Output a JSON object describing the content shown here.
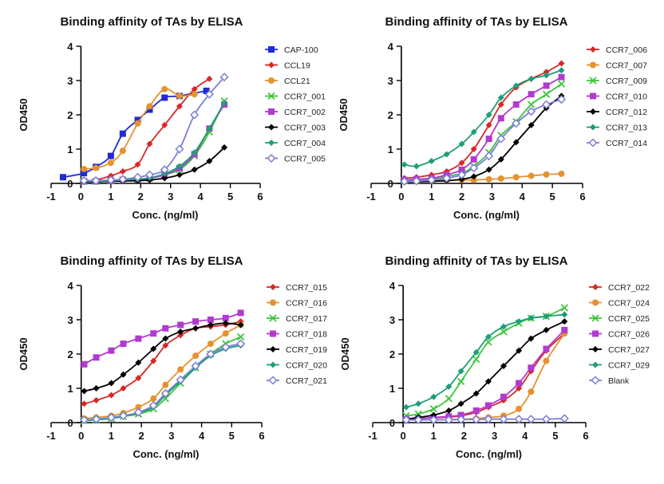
{
  "chart_data": [
    {
      "type": "line",
      "title": "Binding affinity of TAs by ELISA",
      "xlabel": "Conc. (ng/ml)",
      "ylabel": "OD450",
      "xlim": [
        -1,
        6
      ],
      "ylim": [
        0,
        4
      ],
      "xticks": [
        "-1",
        "0",
        "1",
        "2",
        "3",
        "4",
        "5",
        "6"
      ],
      "yticks": [
        "0",
        "1",
        "2",
        "3",
        "4"
      ],
      "legend_position": "right",
      "series": [
        {
          "name": "CAP-100",
          "color": "#1f2bd1",
          "marker": "square",
          "x": [
            -0.6,
            0.1,
            0.5,
            1.0,
            1.4,
            1.9,
            2.3,
            2.8,
            3.3,
            4.2
          ],
          "y": [
            0.18,
            0.3,
            0.48,
            0.8,
            1.45,
            1.85,
            2.15,
            2.5,
            2.55,
            2.7
          ]
        },
        {
          "name": "CCL19",
          "color": "#d62828",
          "marker": "diamond",
          "x": [
            0.1,
            0.5,
            1.0,
            1.4,
            1.9,
            2.3,
            2.8,
            3.3,
            3.8,
            4.3
          ],
          "y": [
            0.08,
            0.1,
            0.22,
            0.35,
            0.55,
            1.15,
            1.7,
            2.25,
            2.75,
            3.05
          ]
        },
        {
          "name": "CCL21",
          "color": "#e5922f",
          "marker": "circle",
          "x": [
            0.1,
            0.5,
            1.0,
            1.4,
            1.9,
            2.3,
            2.8,
            3.3,
            3.8
          ],
          "y": [
            0.42,
            0.45,
            0.6,
            0.95,
            1.75,
            2.25,
            2.75,
            2.55,
            2.6
          ]
        },
        {
          "name": "CCR7_001",
          "color": "#3cc63c",
          "marker": "x",
          "x": [
            0.1,
            0.5,
            1.0,
            1.4,
            1.9,
            2.3,
            2.8,
            3.3,
            3.8,
            4.3,
            4.8
          ],
          "y": [
            0.06,
            0.06,
            0.08,
            0.1,
            0.12,
            0.15,
            0.25,
            0.4,
            0.8,
            1.5,
            2.4
          ]
        },
        {
          "name": "CCR7_002",
          "color": "#b23ad1",
          "marker": "square",
          "x": [
            0.1,
            0.5,
            1.0,
            1.4,
            1.9,
            2.3,
            2.8,
            3.3,
            3.8,
            4.3,
            4.8
          ],
          "y": [
            0.06,
            0.06,
            0.08,
            0.1,
            0.12,
            0.15,
            0.25,
            0.45,
            0.85,
            1.6,
            2.3
          ]
        },
        {
          "name": "CCR7_003",
          "color": "#000000",
          "marker": "diamond",
          "x": [
            0.1,
            0.5,
            1.0,
            1.4,
            1.9,
            2.3,
            2.8,
            3.3,
            3.8,
            4.3,
            4.8
          ],
          "y": [
            0.04,
            0.05,
            0.06,
            0.07,
            0.08,
            0.1,
            0.15,
            0.25,
            0.4,
            0.65,
            1.05
          ]
        },
        {
          "name": "CCR7_004",
          "color": "#1e9e78",
          "marker": "diamond",
          "x": [
            0.1,
            0.5,
            1.0,
            1.4,
            1.9,
            2.3,
            2.8,
            3.3,
            3.8,
            4.3,
            4.8
          ],
          "y": [
            0.06,
            0.06,
            0.08,
            0.1,
            0.12,
            0.16,
            0.28,
            0.5,
            0.9,
            1.6,
            2.35
          ]
        },
        {
          "name": "CCR7_005",
          "color": "#7b7fd6",
          "marker": "diamond-open",
          "x": [
            0.1,
            0.5,
            1.0,
            1.4,
            1.9,
            2.3,
            2.8,
            3.3,
            3.8,
            4.3,
            4.8
          ],
          "y": [
            0.08,
            0.08,
            0.1,
            0.12,
            0.18,
            0.25,
            0.4,
            1.0,
            2.0,
            2.6,
            3.1
          ]
        }
      ]
    },
    {
      "type": "line",
      "title": "Binding affinity of TAs by ELISA",
      "xlabel": "Conc. (ng/ml)",
      "ylabel": "OD450",
      "xlim": [
        -1,
        6
      ],
      "ylim": [
        0,
        4
      ],
      "xticks": [
        "-1",
        "0",
        "1",
        "2",
        "3",
        "4",
        "5",
        "6"
      ],
      "yticks": [
        "0",
        "1",
        "2",
        "3",
        "4"
      ],
      "legend_position": "right",
      "series": [
        {
          "name": "CCR7_006",
          "color": "#d62828",
          "marker": "diamond",
          "x": [
            0.1,
            0.5,
            1.0,
            1.5,
            2.0,
            2.4,
            2.9,
            3.3,
            3.8,
            4.3,
            4.8,
            5.3
          ],
          "y": [
            0.15,
            0.18,
            0.25,
            0.35,
            0.6,
            1.0,
            1.7,
            2.3,
            2.8,
            3.05,
            3.25,
            3.5
          ]
        },
        {
          "name": "CCR7_007",
          "color": "#e5922f",
          "marker": "circle",
          "x": [
            0.1,
            0.5,
            1.0,
            1.5,
            2.0,
            2.4,
            2.9,
            3.3,
            3.8,
            4.3,
            4.8,
            5.3
          ],
          "y": [
            0.08,
            0.08,
            0.08,
            0.09,
            0.1,
            0.1,
            0.12,
            0.14,
            0.18,
            0.22,
            0.26,
            0.28
          ]
        },
        {
          "name": "CCR7_009",
          "color": "#3cc63c",
          "marker": "x",
          "x": [
            0.1,
            0.5,
            1.0,
            1.5,
            2.0,
            2.4,
            2.9,
            3.3,
            3.8,
            4.3,
            4.8,
            5.3
          ],
          "y": [
            0.08,
            0.1,
            0.12,
            0.2,
            0.3,
            0.5,
            0.9,
            1.4,
            1.8,
            2.3,
            2.6,
            2.9
          ]
        },
        {
          "name": "CCR7_010",
          "color": "#b23ad1",
          "marker": "square",
          "x": [
            0.1,
            0.5,
            1.0,
            1.5,
            2.0,
            2.4,
            2.9,
            3.3,
            3.8,
            4.3,
            4.8,
            5.3
          ],
          "y": [
            0.1,
            0.12,
            0.15,
            0.25,
            0.4,
            0.7,
            1.3,
            1.9,
            2.3,
            2.6,
            2.85,
            3.1
          ]
        },
        {
          "name": "CCR7_012",
          "color": "#000000",
          "marker": "diamond",
          "x": [
            0.1,
            0.5,
            1.0,
            1.5,
            2.0,
            2.4,
            2.9,
            3.3,
            3.8,
            4.3,
            4.8,
            5.3
          ],
          "y": [
            0.05,
            0.05,
            0.06,
            0.08,
            0.12,
            0.2,
            0.4,
            0.7,
            1.2,
            1.7,
            2.2,
            2.55
          ]
        },
        {
          "name": "CCR7_013",
          "color": "#1e9e78",
          "marker": "diamond",
          "x": [
            0.1,
            0.5,
            1.0,
            1.5,
            2.0,
            2.4,
            2.9,
            3.3,
            3.8,
            4.3,
            4.8,
            5.3
          ],
          "y": [
            0.55,
            0.5,
            0.65,
            0.85,
            1.15,
            1.5,
            2.0,
            2.5,
            2.85,
            3.05,
            3.15,
            3.3
          ]
        },
        {
          "name": "CCR7_014",
          "color": "#7b7fd6",
          "marker": "diamond-open",
          "x": [
            0.1,
            0.5,
            1.0,
            1.5,
            2.0,
            2.4,
            2.9,
            3.3,
            3.8,
            4.3,
            4.8,
            5.3
          ],
          "y": [
            0.06,
            0.07,
            0.1,
            0.15,
            0.25,
            0.45,
            0.8,
            1.3,
            1.75,
            2.1,
            2.3,
            2.45
          ]
        }
      ]
    },
    {
      "type": "line",
      "title": "Binding affinity of TAs by ELISA",
      "xlabel": "Conc. (ng/ml)",
      "ylabel": "OD450",
      "xlim": [
        -1,
        6
      ],
      "ylim": [
        0,
        4
      ],
      "xticks": [
        "-1",
        "0",
        "1",
        "2",
        "3",
        "4",
        "5",
        "6"
      ],
      "yticks": [
        "0",
        "1",
        "2",
        "3",
        "4"
      ],
      "legend_position": "right",
      "series": [
        {
          "name": "CCR7_015",
          "color": "#d62828",
          "marker": "diamond",
          "x": [
            0.1,
            0.5,
            1.0,
            1.4,
            1.9,
            2.4,
            2.8,
            3.3,
            3.8,
            4.3,
            4.8,
            5.3
          ],
          "y": [
            0.55,
            0.65,
            0.8,
            1.0,
            1.3,
            1.8,
            2.25,
            2.55,
            2.75,
            2.8,
            2.85,
            2.95
          ]
        },
        {
          "name": "CCR7_016",
          "color": "#e5922f",
          "marker": "circle",
          "x": [
            0.1,
            0.5,
            1.0,
            1.4,
            1.9,
            2.4,
            2.8,
            3.3,
            3.8,
            4.3,
            4.8,
            5.3
          ],
          "y": [
            0.12,
            0.15,
            0.2,
            0.28,
            0.45,
            0.7,
            1.1,
            1.55,
            1.95,
            2.3,
            2.6,
            2.85
          ]
        },
        {
          "name": "CCR7_017",
          "color": "#3cc63c",
          "marker": "x",
          "x": [
            0.1,
            0.5,
            1.0,
            1.4,
            1.9,
            2.4,
            2.8,
            3.3,
            3.8,
            4.3,
            4.8,
            5.3
          ],
          "y": [
            0.06,
            0.08,
            0.12,
            0.18,
            0.25,
            0.4,
            0.7,
            1.15,
            1.6,
            2.0,
            2.3,
            2.5
          ]
        },
        {
          "name": "CCR7_018",
          "color": "#b23ad1",
          "marker": "square",
          "x": [
            0.1,
            0.5,
            1.0,
            1.4,
            1.9,
            2.4,
            2.8,
            3.3,
            3.8,
            4.3,
            4.8,
            5.3
          ],
          "y": [
            1.7,
            1.9,
            2.1,
            2.3,
            2.45,
            2.6,
            2.75,
            2.85,
            2.95,
            3.0,
            3.05,
            3.2
          ]
        },
        {
          "name": "CCR7_019",
          "color": "#000000",
          "marker": "diamond",
          "x": [
            0.1,
            0.5,
            1.0,
            1.4,
            1.9,
            2.4,
            2.8,
            3.3,
            3.8,
            4.3,
            4.8,
            5.3
          ],
          "y": [
            0.92,
            1.0,
            1.15,
            1.4,
            1.75,
            2.15,
            2.45,
            2.65,
            2.75,
            2.85,
            2.9,
            2.85
          ]
        },
        {
          "name": "CCR7_020",
          "color": "#1e9e78",
          "marker": "diamond",
          "x": [
            0.1,
            0.5,
            1.0,
            1.4,
            1.9,
            2.4,
            2.8,
            3.3,
            3.8,
            4.3,
            4.8,
            5.3
          ],
          "y": [
            0.06,
            0.08,
            0.12,
            0.18,
            0.28,
            0.45,
            0.8,
            1.2,
            1.6,
            1.95,
            2.15,
            2.25
          ]
        },
        {
          "name": "CCR7_021",
          "color": "#7b7fd6",
          "marker": "diamond-open",
          "x": [
            0.1,
            0.5,
            1.0,
            1.4,
            1.9,
            2.4,
            2.8,
            3.3,
            3.8,
            4.3,
            4.8,
            5.3
          ],
          "y": [
            0.08,
            0.1,
            0.15,
            0.2,
            0.3,
            0.5,
            0.85,
            1.25,
            1.65,
            2.0,
            2.2,
            2.3
          ]
        }
      ]
    },
    {
      "type": "line",
      "title": "Binding affinity of TAs by ELISA",
      "xlabel": "Conc. (ng/ml)",
      "ylabel": "OD450",
      "xlim": [
        -1,
        6
      ],
      "ylim": [
        0,
        4
      ],
      "xticks": [
        "-1",
        "0",
        "1",
        "2",
        "3",
        "4",
        "5",
        "6"
      ],
      "yticks": [
        "0",
        "1",
        "2",
        "3",
        "4"
      ],
      "legend_position": "right",
      "series": [
        {
          "name": "CCR7_022",
          "color": "#d62828",
          "marker": "diamond",
          "x": [
            0.1,
            0.5,
            1.0,
            1.5,
            1.9,
            2.4,
            2.8,
            3.3,
            3.8,
            4.2,
            4.7,
            5.3
          ],
          "y": [
            0.1,
            0.12,
            0.14,
            0.16,
            0.2,
            0.3,
            0.45,
            0.65,
            1.0,
            1.5,
            2.1,
            2.6
          ]
        },
        {
          "name": "CCR7_024",
          "color": "#e5922f",
          "marker": "circle",
          "x": [
            0.1,
            0.5,
            1.0,
            1.5,
            1.9,
            2.4,
            2.8,
            3.3,
            3.8,
            4.2,
            4.7,
            5.3
          ],
          "y": [
            0.08,
            0.08,
            0.08,
            0.09,
            0.1,
            0.12,
            0.15,
            0.2,
            0.4,
            0.9,
            1.8,
            2.6
          ]
        },
        {
          "name": "CCR7_025",
          "color": "#3cc63c",
          "marker": "x",
          "x": [
            0.1,
            0.5,
            1.0,
            1.5,
            1.9,
            2.4,
            2.8,
            3.3,
            3.8,
            4.2,
            4.7,
            5.3
          ],
          "y": [
            0.2,
            0.25,
            0.4,
            0.7,
            1.2,
            1.85,
            2.35,
            2.65,
            2.9,
            3.05,
            3.1,
            3.35
          ]
        },
        {
          "name": "CCR7_026",
          "color": "#b23ad1",
          "marker": "square",
          "x": [
            0.1,
            0.5,
            1.0,
            1.5,
            1.9,
            2.4,
            2.8,
            3.3,
            3.8,
            4.2,
            4.7,
            5.3
          ],
          "y": [
            0.1,
            0.12,
            0.15,
            0.18,
            0.22,
            0.35,
            0.5,
            0.75,
            1.15,
            1.6,
            2.15,
            2.7
          ]
        },
        {
          "name": "CCR7_027",
          "color": "#000000",
          "marker": "diamond",
          "x": [
            0.1,
            0.5,
            1.0,
            1.5,
            1.9,
            2.4,
            2.8,
            3.3,
            3.8,
            4.2,
            4.7,
            5.3
          ],
          "y": [
            0.1,
            0.15,
            0.22,
            0.35,
            0.55,
            0.85,
            1.2,
            1.65,
            2.1,
            2.45,
            2.7,
            2.95
          ]
        },
        {
          "name": "CCR7_029",
          "color": "#1e9e78",
          "marker": "diamond",
          "x": [
            0.1,
            0.5,
            1.0,
            1.5,
            1.9,
            2.4,
            2.8,
            3.3,
            3.8,
            4.2,
            4.7,
            5.3
          ],
          "y": [
            0.45,
            0.55,
            0.75,
            1.05,
            1.5,
            2.05,
            2.5,
            2.8,
            2.95,
            3.05,
            3.1,
            3.15
          ]
        },
        {
          "name": "Blank",
          "color": "#7b7fd6",
          "marker": "diamond-open",
          "x": [
            0.1,
            0.5,
            1.0,
            1.5,
            1.9,
            2.4,
            2.8,
            3.3,
            3.8,
            4.2,
            4.7,
            5.3
          ],
          "y": [
            0.08,
            0.08,
            0.08,
            0.08,
            0.09,
            0.09,
            0.1,
            0.1,
            0.1,
            0.1,
            0.1,
            0.12
          ]
        }
      ]
    }
  ]
}
